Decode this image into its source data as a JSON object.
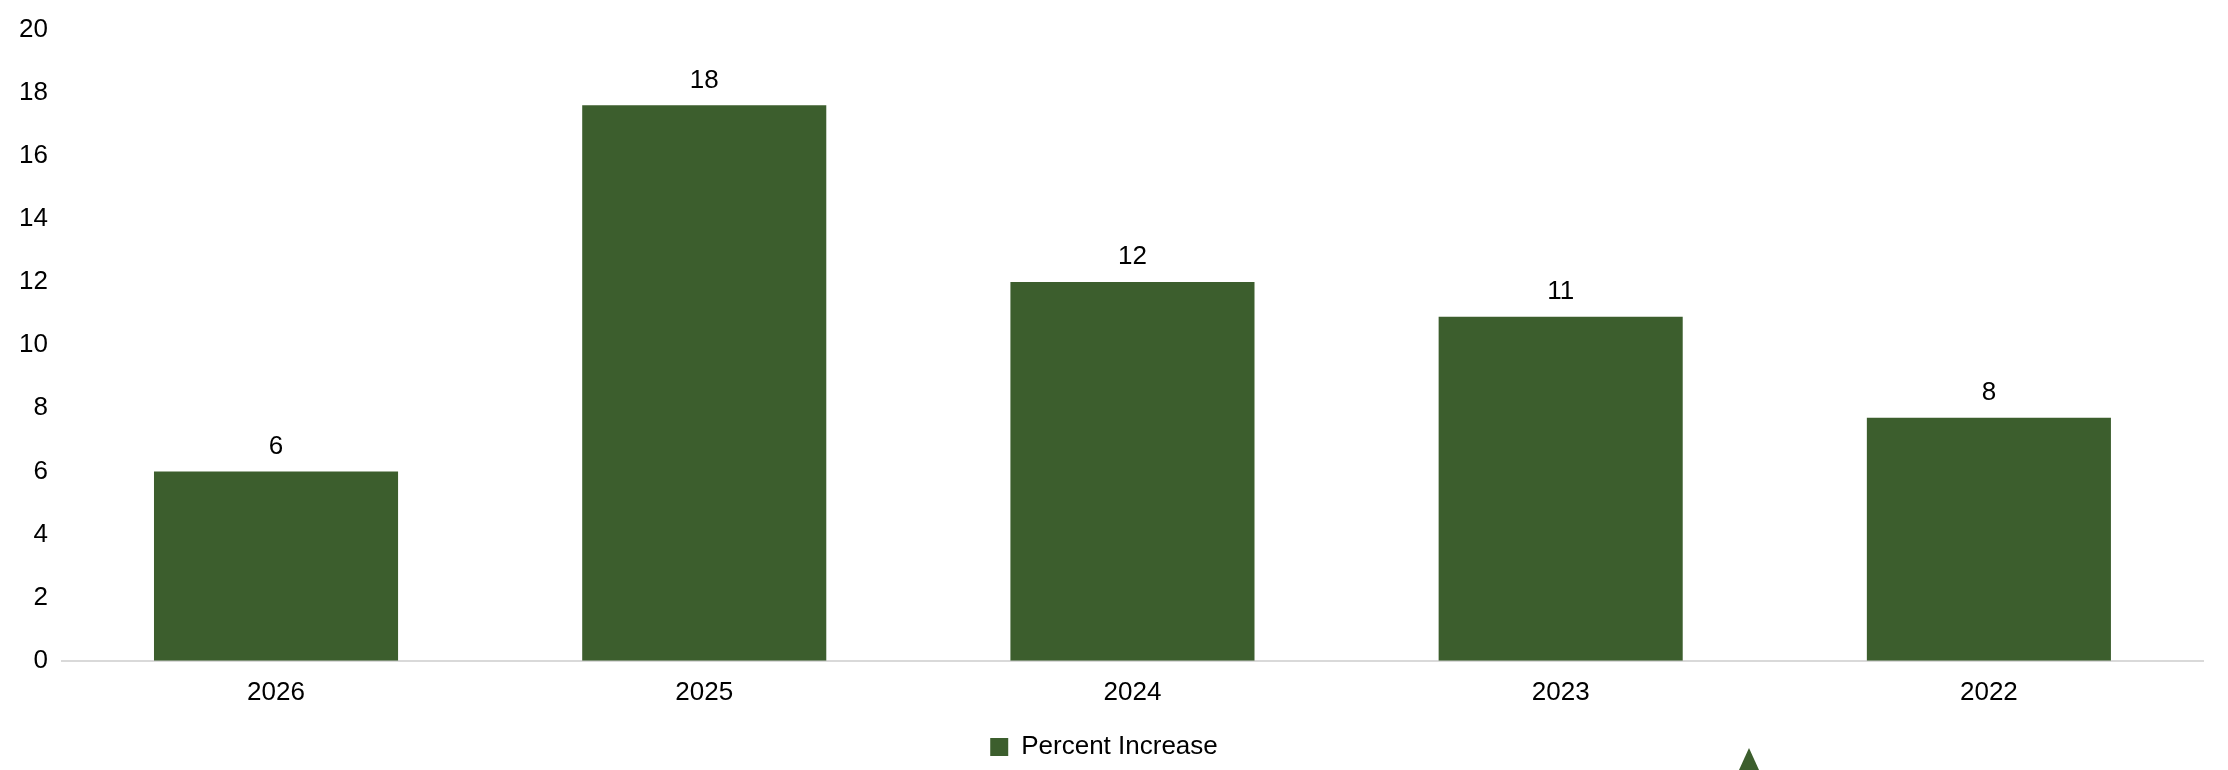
{
  "chart_data": {
    "type": "bar",
    "categories": [
      "2026",
      "2025",
      "2024",
      "2023",
      "2022"
    ],
    "series": [
      {
        "name": "Percent Increase",
        "color": "#3c5e2d",
        "values": [
          6,
          17.6,
          12,
          10.9,
          7.7
        ],
        "value_labels": [
          "6",
          "18",
          "12",
          "11",
          "8"
        ]
      }
    ],
    "ylim": [
      0,
      20
    ],
    "yticks": [
      0,
      2,
      4,
      6,
      8,
      10,
      12,
      14,
      16,
      18,
      20
    ],
    "grid": false,
    "legend": "bottom"
  }
}
